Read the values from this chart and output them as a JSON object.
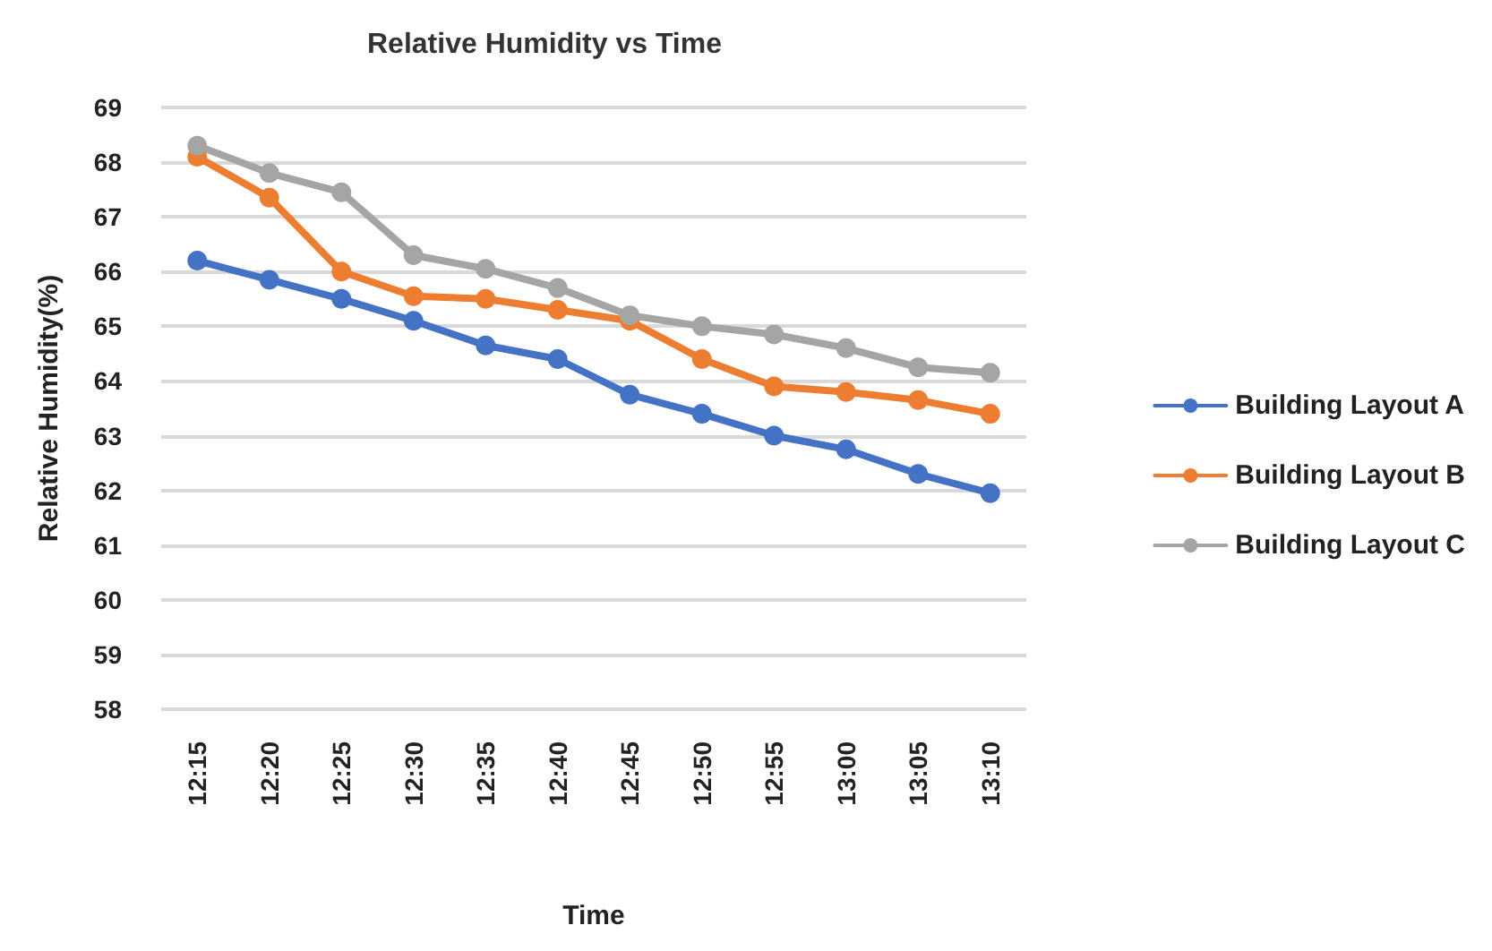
{
  "chart_data": {
    "type": "line",
    "title": "Relative Humidity vs Time",
    "xlabel": "Time",
    "ylabel": "Relative Humidity(%)",
    "categories": [
      "12:15",
      "12:20",
      "12:25",
      "12:30",
      "12:35",
      "12:40",
      "12:45",
      "12:50",
      "12:55",
      "13:00",
      "13:05",
      "13:10"
    ],
    "series": [
      {
        "name": "Building Layout A",
        "color": "#4472c4",
        "values": [
          66.2,
          65.85,
          65.5,
          65.1,
          64.65,
          64.4,
          63.75,
          63.4,
          63.0,
          62.75,
          62.3,
          61.95
        ]
      },
      {
        "name": "Building Layout B",
        "color": "#ed7d31",
        "values": [
          68.1,
          67.35,
          66.0,
          65.55,
          65.5,
          65.3,
          65.1,
          64.4,
          63.9,
          63.8,
          63.65,
          63.4
        ]
      },
      {
        "name": "Building Layout C",
        "color": "#a5a5a5",
        "values": [
          68.3,
          67.8,
          67.45,
          66.3,
          66.05,
          65.7,
          65.2,
          65.0,
          64.85,
          64.6,
          64.25,
          64.15
        ]
      }
    ],
    "ylim": [
      58,
      69
    ],
    "yticks": [
      58,
      59,
      60,
      61,
      62,
      63,
      64,
      65,
      66,
      67,
      68,
      69
    ],
    "grid": "y",
    "legend": "right",
    "marker": "circle",
    "line_style": "solid"
  }
}
